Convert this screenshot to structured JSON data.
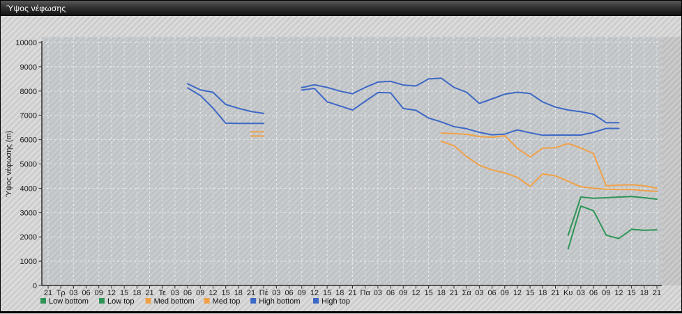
{
  "window": {
    "title": "Ύψος νέφωσης"
  },
  "chart_data": {
    "type": "line",
    "title": "Ύψος νέφωσης",
    "xlabel": "",
    "ylabel": "Ύψος νέφωσης (m)",
    "ylim": [
      0,
      10000
    ],
    "ytick_step": 1000,
    "grid": true,
    "legend_position": "bottom",
    "x_tick_labels": [
      "21",
      "Τρ",
      "03",
      "06",
      "09",
      "12",
      "15",
      "18",
      "21",
      "Τε",
      "03",
      "06",
      "09",
      "12",
      "15",
      "18",
      "21",
      "Πέ",
      "03",
      "06",
      "09",
      "12",
      "15",
      "18",
      "21",
      "Πα",
      "03",
      "06",
      "09",
      "12",
      "15",
      "18",
      "21",
      "Σά",
      "03",
      "06",
      "09",
      "12",
      "15",
      "18",
      "21",
      "Κυ",
      "03",
      "06",
      "09",
      "12",
      "15",
      "18",
      "21"
    ],
    "series": [
      {
        "name": "Low bottom",
        "color": "#2e9556",
        "values": [
          null,
          null,
          null,
          null,
          null,
          null,
          null,
          null,
          null,
          null,
          null,
          null,
          null,
          null,
          null,
          null,
          null,
          null,
          null,
          null,
          null,
          null,
          null,
          null,
          null,
          null,
          null,
          null,
          null,
          null,
          null,
          null,
          null,
          null,
          null,
          null,
          null,
          null,
          null,
          null,
          null,
          1500,
          3270,
          3075,
          2070,
          1930,
          2310,
          2270,
          2290
        ]
      },
      {
        "name": "Low top",
        "color": "#2e9556",
        "values": [
          null,
          null,
          null,
          null,
          null,
          null,
          null,
          null,
          null,
          null,
          null,
          null,
          null,
          null,
          null,
          null,
          null,
          null,
          null,
          null,
          null,
          null,
          null,
          null,
          null,
          null,
          null,
          null,
          null,
          null,
          null,
          null,
          null,
          null,
          null,
          null,
          null,
          null,
          null,
          null,
          null,
          2070,
          3640,
          3590,
          3610,
          3640,
          3660,
          3610,
          3550
        ]
      },
      {
        "name": "Med bottom",
        "color": "#f0a148",
        "values": [
          null,
          null,
          null,
          null,
          null,
          null,
          null,
          null,
          null,
          null,
          null,
          null,
          null,
          null,
          null,
          null,
          6150,
          6150,
          null,
          null,
          null,
          null,
          null,
          null,
          null,
          null,
          null,
          null,
          null,
          null,
          null,
          5930,
          5750,
          5300,
          4950,
          4750,
          4640,
          4450,
          4080,
          4590,
          4510,
          4290,
          4060,
          4000,
          3960,
          3950,
          3950,
          3900,
          3870
        ]
      },
      {
        "name": "Med top",
        "color": "#f0a148",
        "values": [
          null,
          null,
          null,
          null,
          null,
          null,
          null,
          null,
          null,
          null,
          null,
          null,
          null,
          null,
          null,
          null,
          6320,
          6320,
          null,
          null,
          null,
          null,
          null,
          null,
          null,
          null,
          null,
          null,
          null,
          null,
          null,
          6270,
          6250,
          6220,
          6130,
          6100,
          6160,
          5650,
          5290,
          5650,
          5670,
          5840,
          5660,
          5430,
          4100,
          4130,
          4150,
          4100,
          4000
        ]
      },
      {
        "name": "High bottom",
        "color": "#3d68c6",
        "values": [
          null,
          null,
          null,
          null,
          null,
          null,
          null,
          null,
          null,
          null,
          null,
          8130,
          7820,
          7300,
          6680,
          6670,
          6670,
          6670,
          null,
          null,
          8040,
          8110,
          7560,
          7390,
          7220,
          7580,
          7940,
          7930,
          7280,
          7210,
          6890,
          6730,
          6540,
          6450,
          6300,
          6200,
          6230,
          6400,
          6280,
          6180,
          6190,
          6190,
          6190,
          6300,
          6460,
          6460,
          null,
          null,
          null
        ]
      },
      {
        "name": "High top",
        "color": "#3d68c6",
        "values": [
          null,
          null,
          null,
          null,
          null,
          null,
          null,
          null,
          null,
          null,
          null,
          8300,
          8050,
          7950,
          7450,
          7290,
          7160,
          7080,
          null,
          null,
          8140,
          8260,
          8150,
          8000,
          7890,
          8150,
          8370,
          8400,
          8250,
          8210,
          8500,
          8530,
          8150,
          7950,
          7490,
          7680,
          7870,
          7950,
          7900,
          7550,
          7340,
          7220,
          7150,
          7050,
          6700,
          6700,
          null,
          null,
          null
        ]
      }
    ]
  }
}
